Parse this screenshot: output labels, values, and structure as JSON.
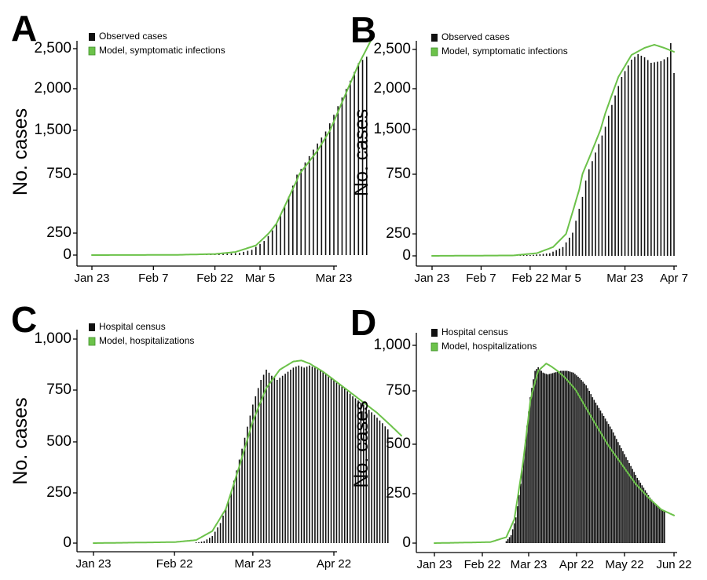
{
  "colors": {
    "bars": "#111111",
    "model": "#6cc24a",
    "legend_model_fill": "#6cc24a",
    "legend_model_edge": "#3f8f2a"
  },
  "chart_data": [
    {
      "panel": "A",
      "type": "bar",
      "ylabel": "No. cases",
      "yticks": [
        0,
        250,
        750,
        1500,
        2000,
        2500
      ],
      "ytick_labels": [
        "0",
        "250",
        "750",
        "1,500",
        "2,000",
        "2,500"
      ],
      "xticks": [
        0,
        15,
        30,
        41,
        59
      ],
      "xtick_labels": [
        "Jan 23",
        "Feb 7",
        "Feb 22",
        "Mar 5",
        "Mar 23"
      ],
      "xlim": [
        -1,
        70
      ],
      "legend": [
        "Observed cases",
        "Model, symptomatic infections"
      ],
      "legend_placement": "top-left",
      "series": [
        {
          "kind": "bars",
          "start_day": 20,
          "end_day": 67,
          "step": 1,
          "knots": [
            [
              20,
              2
            ],
            [
              30,
              6
            ],
            [
              36,
              25
            ],
            [
              39,
              60
            ],
            [
              42,
              160
            ],
            [
              45,
              330
            ],
            [
              48,
              560
            ],
            [
              51,
              840
            ],
            [
              54,
              1170
            ],
            [
              57,
              1480
            ],
            [
              60,
              1790
            ],
            [
              63,
              2100
            ],
            [
              65,
              2320
            ],
            [
              67,
              2400
            ]
          ]
        },
        {
          "kind": "line",
          "knots": [
            [
              0,
              0
            ],
            [
              20,
              2
            ],
            [
              30,
              12
            ],
            [
              35,
              35
            ],
            [
              40,
              110
            ],
            [
              45,
              330
            ],
            [
              50,
              700
            ],
            [
              55,
              1150
            ],
            [
              60,
              1720
            ],
            [
              65,
              2300
            ],
            [
              68,
              2600
            ]
          ]
        }
      ]
    },
    {
      "panel": "B",
      "type": "bar",
      "ylabel": "No. cases",
      "yticks": [
        0,
        250,
        750,
        1500,
        2000,
        2500
      ],
      "ytick_labels": [
        "0",
        "250",
        "750",
        "1,500",
        "2,000",
        "2,500"
      ],
      "xticks": [
        0,
        15,
        30,
        41,
        59,
        74
      ],
      "xtick_labels": [
        "Jan 23",
        "Feb 7",
        "Feb 22",
        "Mar 5",
        "Mar 23",
        "Apr 7"
      ],
      "xlim": [
        -1,
        77
      ],
      "legend": [
        "Observed cases",
        "Model, symptomatic infections"
      ],
      "legend_placement": "top-left",
      "series": [
        {
          "kind": "bars",
          "start_day": 22,
          "end_day": 74,
          "step": 1,
          "knots": [
            [
              22,
              2
            ],
            [
              30,
              8
            ],
            [
              36,
              30
            ],
            [
              40,
              100
            ],
            [
              43,
              260
            ],
            [
              46,
              560
            ],
            [
              49,
              970
            ],
            [
              52,
              1400
            ],
            [
              55,
              1800
            ],
            [
              58,
              2150
            ],
            [
              61,
              2370
            ],
            [
              63,
              2440
            ],
            [
              65,
              2400
            ],
            [
              67,
              2330
            ],
            [
              70,
              2350
            ],
            [
              72,
              2400
            ],
            [
              73,
              2580
            ],
            [
              74,
              2200
            ]
          ]
        },
        {
          "kind": "line",
          "knots": [
            [
              0,
              0
            ],
            [
              25,
              5
            ],
            [
              32,
              30
            ],
            [
              37,
              100
            ],
            [
              41,
              250
            ],
            [
              45,
              620
            ],
            [
              49,
              1150
            ],
            [
              53,
              1700
            ],
            [
              57,
              2150
            ],
            [
              61,
              2430
            ],
            [
              65,
              2520
            ],
            [
              68,
              2560
            ],
            [
              71,
              2520
            ],
            [
              74,
              2470
            ]
          ]
        }
      ]
    },
    {
      "panel": "C",
      "type": "bar",
      "ylabel": "No. cases",
      "yticks": [
        0,
        250,
        500,
        750,
        1000
      ],
      "ytick_labels": [
        "0",
        "250",
        "500",
        "750",
        "1,000"
      ],
      "xticks": [
        0,
        30,
        59,
        89
      ],
      "xtick_labels": [
        "Jan 23",
        "Feb 22",
        "Mar 23",
        "Apr 22"
      ],
      "xlim": [
        -1,
        117
      ],
      "legend": [
        "Hospital census",
        "Model, hospitalizations"
      ],
      "legend_placement": "top-left",
      "series": [
        {
          "kind": "bars",
          "start_day": 38,
          "end_day": 109,
          "step": 1,
          "knots": [
            [
              38,
              2
            ],
            [
              41,
              10
            ],
            [
              44,
              35
            ],
            [
              47,
              100
            ],
            [
              50,
              210
            ],
            [
              53,
              360
            ],
            [
              56,
              520
            ],
            [
              59,
              680
            ],
            [
              62,
              800
            ],
            [
              64,
              850
            ],
            [
              66,
              820
            ],
            [
              68,
              800
            ],
            [
              70,
              820
            ],
            [
              72,
              840
            ],
            [
              74,
              860
            ],
            [
              76,
              870
            ],
            [
              78,
              860
            ],
            [
              80,
              870
            ],
            [
              82,
              860
            ],
            [
              85,
              840
            ],
            [
              88,
              810
            ],
            [
              92,
              770
            ],
            [
              96,
              720
            ],
            [
              100,
              680
            ],
            [
              104,
              630
            ],
            [
              107,
              590
            ],
            [
              109,
              560
            ]
          ]
        },
        {
          "kind": "line",
          "knots": [
            [
              0,
              0
            ],
            [
              30,
              5
            ],
            [
              38,
              15
            ],
            [
              44,
              60
            ],
            [
              49,
              170
            ],
            [
              54,
              380
            ],
            [
              59,
              600
            ],
            [
              64,
              760
            ],
            [
              69,
              850
            ],
            [
              74,
              890
            ],
            [
              77,
              895
            ],
            [
              80,
              880
            ],
            [
              85,
              840
            ],
            [
              90,
              790
            ],
            [
              95,
              740
            ],
            [
              100,
              690
            ],
            [
              105,
              640
            ],
            [
              110,
              580
            ],
            [
              114,
              530
            ]
          ]
        }
      ]
    },
    {
      "panel": "D",
      "type": "bar",
      "ylabel": "No. cases",
      "yticks": [
        0,
        250,
        500,
        750,
        1000
      ],
      "ytick_labels": [
        "0",
        "250",
        "500",
        "750",
        "1,000"
      ],
      "xticks": [
        0,
        30,
        59,
        89,
        119,
        150
      ],
      "xtick_labels": [
        "Jan 23",
        "Feb 22",
        "Mar 23",
        "Apr 22",
        "May 22",
        "Jun 22"
      ],
      "xlim": [
        -1,
        152
      ],
      "legend": [
        "Hospital census",
        "Model, hospitalizations"
      ],
      "legend_placement": "top-left",
      "series": [
        {
          "kind": "bars",
          "start_day": 45,
          "end_day": 144,
          "step": 1,
          "knots": [
            [
              45,
              10
            ],
            [
              48,
              40
            ],
            [
              51,
              130
            ],
            [
              54,
              300
            ],
            [
              57,
              520
            ],
            [
              60,
              720
            ],
            [
              63,
              860
            ],
            [
              65,
              880
            ],
            [
              68,
              850
            ],
            [
              71,
              840
            ],
            [
              75,
              850
            ],
            [
              79,
              860
            ],
            [
              83,
              860
            ],
            [
              87,
              850
            ],
            [
              91,
              820
            ],
            [
              95,
              780
            ],
            [
              99,
              720
            ],
            [
              103,
              670
            ],
            [
              107,
              620
            ],
            [
              111,
              570
            ],
            [
              115,
              510
            ],
            [
              119,
              450
            ],
            [
              123,
              390
            ],
            [
              127,
              330
            ],
            [
              131,
              280
            ],
            [
              135,
              230
            ],
            [
              139,
              190
            ],
            [
              142,
              170
            ],
            [
              144,
              160
            ]
          ]
        },
        {
          "kind": "line",
          "knots": [
            [
              0,
              0
            ],
            [
              35,
              5
            ],
            [
              45,
              30
            ],
            [
              50,
              120
            ],
            [
              55,
              380
            ],
            [
              60,
              700
            ],
            [
              65,
              860
            ],
            [
              70,
              900
            ],
            [
              73,
              885
            ],
            [
              77,
              860
            ],
            [
              82,
              820
            ],
            [
              88,
              760
            ],
            [
              95,
              670
            ],
            [
              102,
              580
            ],
            [
              110,
              480
            ],
            [
              118,
              390
            ],
            [
              126,
              300
            ],
            [
              134,
              230
            ],
            [
              142,
              170
            ],
            [
              150,
              140
            ]
          ]
        }
      ]
    }
  ]
}
